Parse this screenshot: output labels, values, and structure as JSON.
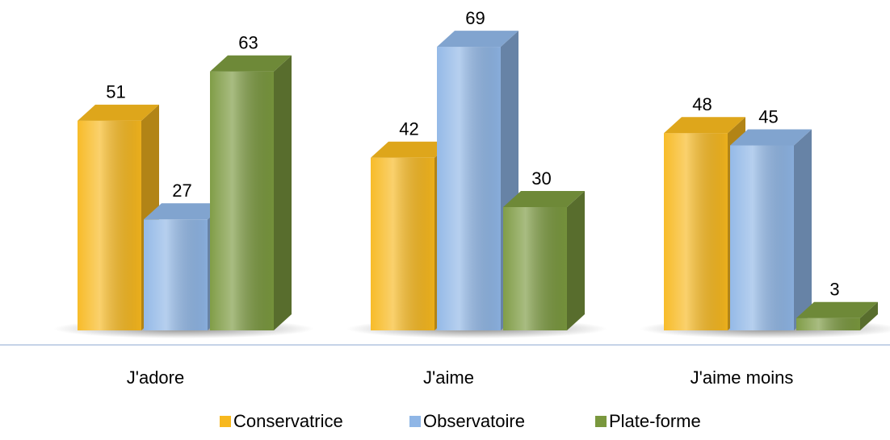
{
  "chart_data": {
    "type": "bar3d",
    "categories": [
      "J'adore",
      "J'aime",
      "J'aime moins"
    ],
    "series": [
      {
        "name": "Conservatrice",
        "color": "#f7b81e",
        "values": [
          51,
          42,
          48
        ]
      },
      {
        "name": "Observatoire",
        "color": "#8fb6e6",
        "values": [
          27,
          69,
          45
        ]
      },
      {
        "name": "Plate-forme",
        "color": "#7a983e",
        "values": [
          63,
          30,
          3
        ]
      }
    ],
    "legend": "bottom"
  }
}
